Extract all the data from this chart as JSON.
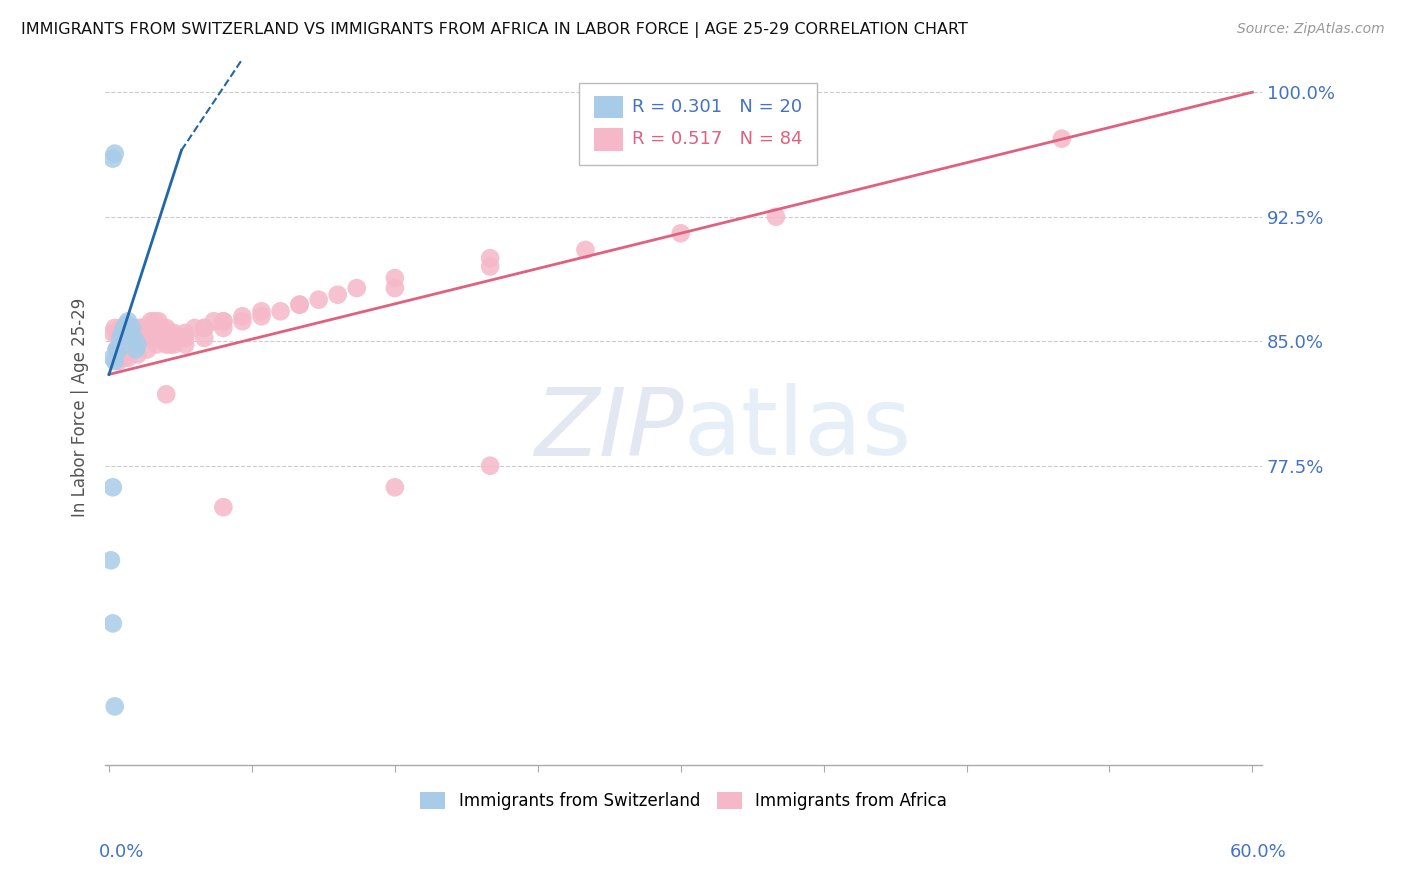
{
  "title": "IMMIGRANTS FROM SWITZERLAND VS IMMIGRANTS FROM AFRICA IN LABOR FORCE | AGE 25-29 CORRELATION CHART",
  "source": "Source: ZipAtlas.com",
  "ylabel": "In Labor Force | Age 25-29",
  "ylim": [
    0.595,
    1.025
  ],
  "xlim": [
    -0.002,
    0.605
  ],
  "legend_R_blue": "R = 0.301",
  "legend_N_blue": "N = 20",
  "legend_R_pink": "R = 0.517",
  "legend_N_pink": "N = 84",
  "color_blue": "#a8cce8",
  "color_pink": "#f5b8c8",
  "color_line_blue": "#2266aa",
  "color_line_pink": "#e06080",
  "color_axis_labels": "#4472c4",
  "ytick_vals": [
    0.775,
    0.85,
    0.925,
    1.0
  ],
  "ytick_labels": [
    "77.5%",
    "85.0%",
    "92.5%",
    "100.0%"
  ],
  "sw_x": [
    0.002,
    0.003,
    0.004,
    0.005,
    0.006,
    0.007,
    0.008,
    0.009,
    0.01,
    0.011,
    0.012,
    0.013,
    0.014,
    0.015,
    0.002,
    0.003,
    0.001,
    0.002,
    0.002,
    0.003
  ],
  "sw_y": [
    0.96,
    0.963,
    0.845,
    0.845,
    0.852,
    0.855,
    0.858,
    0.86,
    0.862,
    0.855,
    0.858,
    0.852,
    0.845,
    0.848,
    0.84,
    0.838,
    0.718,
    0.762,
    0.68,
    0.63
  ],
  "af_x": [
    0.002,
    0.003,
    0.004,
    0.005,
    0.006,
    0.007,
    0.008,
    0.009,
    0.01,
    0.011,
    0.012,
    0.013,
    0.014,
    0.015,
    0.016,
    0.017,
    0.018,
    0.019,
    0.02,
    0.022,
    0.024,
    0.026,
    0.028,
    0.03,
    0.032,
    0.034,
    0.036,
    0.038,
    0.04,
    0.045,
    0.05,
    0.055,
    0.06,
    0.07,
    0.08,
    0.09,
    0.1,
    0.11,
    0.12,
    0.13,
    0.004,
    0.006,
    0.008,
    0.01,
    0.012,
    0.014,
    0.016,
    0.018,
    0.02,
    0.022,
    0.024,
    0.026,
    0.028,
    0.03,
    0.032,
    0.034,
    0.04,
    0.05,
    0.06,
    0.07,
    0.08,
    0.1,
    0.15,
    0.2,
    0.005,
    0.008,
    0.01,
    0.015,
    0.02,
    0.025,
    0.03,
    0.04,
    0.05,
    0.06,
    0.15,
    0.2,
    0.5,
    0.25,
    0.3,
    0.35,
    0.15,
    0.2,
    0.03,
    0.06
  ],
  "af_y": [
    0.855,
    0.858,
    0.855,
    0.852,
    0.858,
    0.855,
    0.855,
    0.858,
    0.858,
    0.858,
    0.858,
    0.858,
    0.855,
    0.855,
    0.858,
    0.858,
    0.858,
    0.855,
    0.858,
    0.862,
    0.862,
    0.862,
    0.858,
    0.858,
    0.855,
    0.855,
    0.852,
    0.852,
    0.855,
    0.858,
    0.858,
    0.862,
    0.862,
    0.865,
    0.868,
    0.868,
    0.872,
    0.875,
    0.878,
    0.882,
    0.845,
    0.848,
    0.848,
    0.85,
    0.852,
    0.852,
    0.852,
    0.852,
    0.852,
    0.852,
    0.852,
    0.852,
    0.852,
    0.852,
    0.848,
    0.848,
    0.848,
    0.852,
    0.858,
    0.862,
    0.865,
    0.872,
    0.888,
    0.9,
    0.838,
    0.84,
    0.84,
    0.842,
    0.845,
    0.848,
    0.848,
    0.852,
    0.858,
    0.862,
    0.882,
    0.895,
    0.972,
    0.905,
    0.915,
    0.925,
    0.762,
    0.775,
    0.818,
    0.75
  ]
}
